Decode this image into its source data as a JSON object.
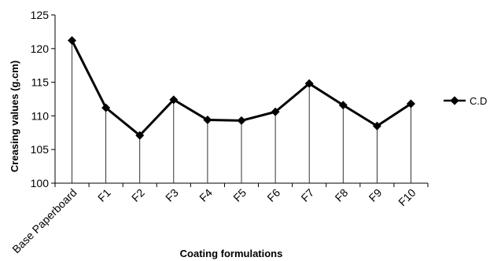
{
  "chart_data": {
    "type": "line",
    "title": "",
    "xlabel": "Coating formulations",
    "ylabel": "Creasing values (g.cm)",
    "categories": [
      "Base Paperboard",
      "F1",
      "F2",
      "F3",
      "F4",
      "F5",
      "F6",
      "F7",
      "F8",
      "F9",
      "F10"
    ],
    "series": [
      {
        "name": "C.D",
        "values": [
          121.2,
          111.2,
          107.1,
          112.4,
          109.4,
          109.3,
          110.6,
          114.8,
          111.6,
          108.5,
          111.8
        ]
      }
    ],
    "ylim": [
      100,
      125
    ],
    "yticks": [
      100,
      105,
      110,
      115,
      120,
      125
    ],
    "drop_lines": true,
    "grid": false,
    "legend_position": "right",
    "colors": {
      "line": "#000000",
      "drop_line": "#000000"
    }
  }
}
